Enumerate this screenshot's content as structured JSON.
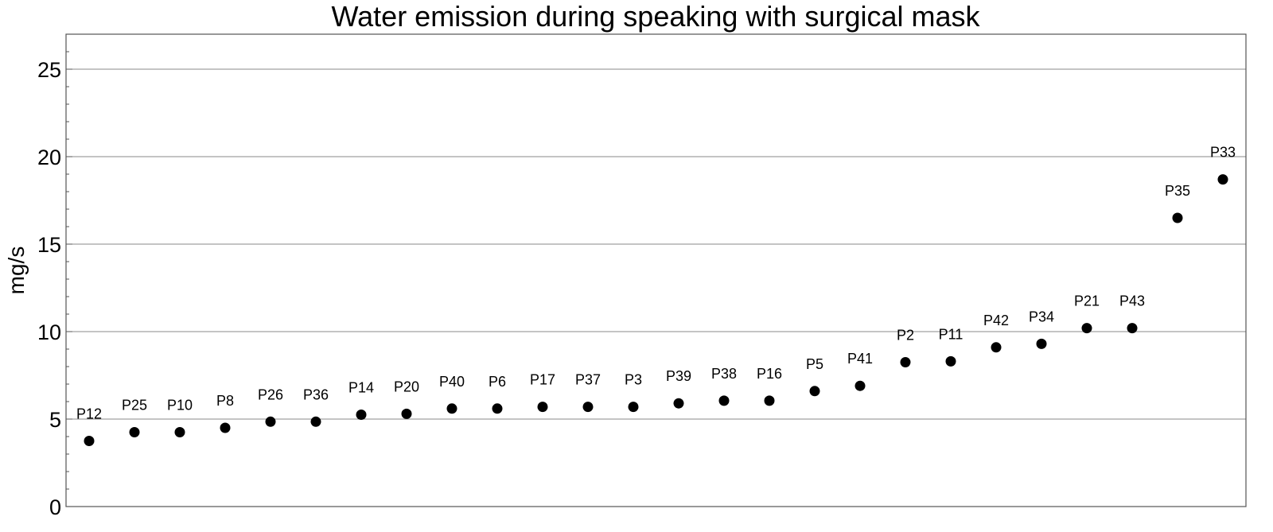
{
  "chart_data": {
    "type": "scatter",
    "title": "Water emission during speaking with surgical mask",
    "ylabel": "mg/s",
    "xlabel": "",
    "ylim": [
      0,
      27
    ],
    "yticks": [
      "0",
      "5",
      "10",
      "15",
      "20",
      "25"
    ],
    "ytick_values": [
      0,
      5,
      10,
      15,
      20,
      25
    ],
    "grid": "horizontal",
    "points": [
      {
        "label": "P12",
        "value": 3.75
      },
      {
        "label": "P25",
        "value": 4.25
      },
      {
        "label": "P10",
        "value": 4.25
      },
      {
        "label": "P8",
        "value": 4.5
      },
      {
        "label": "P26",
        "value": 4.85
      },
      {
        "label": "P36",
        "value": 4.85
      },
      {
        "label": "P14",
        "value": 5.25
      },
      {
        "label": "P20",
        "value": 5.3
      },
      {
        "label": "P40",
        "value": 5.6
      },
      {
        "label": "P6",
        "value": 5.6
      },
      {
        "label": "P17",
        "value": 5.7
      },
      {
        "label": "P37",
        "value": 5.7
      },
      {
        "label": "P3",
        "value": 5.7
      },
      {
        "label": "P39",
        "value": 5.9
      },
      {
        "label": "P38",
        "value": 6.05
      },
      {
        "label": "P16",
        "value": 6.05
      },
      {
        "label": "P5",
        "value": 6.6
      },
      {
        "label": "P41",
        "value": 6.9
      },
      {
        "label": "P2",
        "value": 8.25
      },
      {
        "label": "P11",
        "value": 8.3
      },
      {
        "label": "P42",
        "value": 9.1
      },
      {
        "label": "P34",
        "value": 9.3
      },
      {
        "label": "P21",
        "value": 10.2
      },
      {
        "label": "P43",
        "value": 10.2
      },
      {
        "label": "P35",
        "value": 16.5
      },
      {
        "label": "P33",
        "value": 18.7
      }
    ]
  }
}
